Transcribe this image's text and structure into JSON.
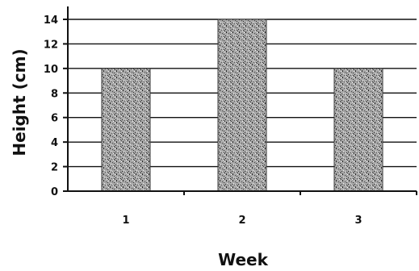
{
  "chart_data": {
    "type": "bar",
    "title": "",
    "xlabel": "Week",
    "ylabel": "Height (cm)",
    "categories": [
      "1",
      "2",
      "3"
    ],
    "values": [
      10,
      14,
      10
    ],
    "ylim": [
      0,
      14
    ],
    "yticks": [
      0,
      2,
      4,
      6,
      8,
      10,
      12,
      14
    ],
    "grid": true,
    "legend": "none",
    "bar_color": "#9a9a9a",
    "bar_outline": "#333333",
    "grid_color": "#111111"
  }
}
